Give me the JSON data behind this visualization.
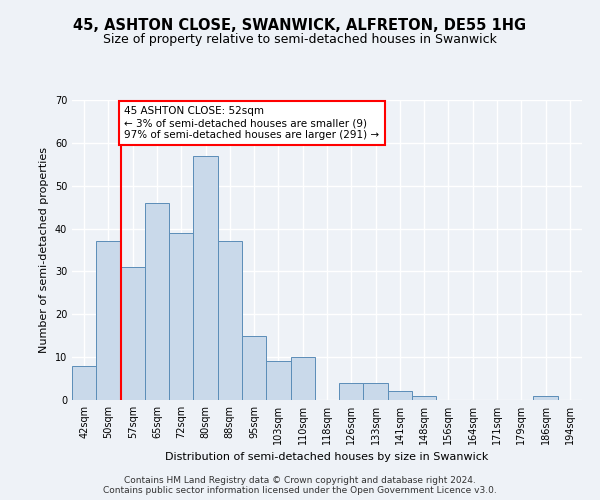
{
  "title": "45, ASHTON CLOSE, SWANWICK, ALFRETON, DE55 1HG",
  "subtitle": "Size of property relative to semi-detached houses in Swanwick",
  "xlabel": "Distribution of semi-detached houses by size in Swanwick",
  "ylabel": "Number of semi-detached properties",
  "categories": [
    "42sqm",
    "50sqm",
    "57sqm",
    "65sqm",
    "72sqm",
    "80sqm",
    "88sqm",
    "95sqm",
    "103sqm",
    "110sqm",
    "118sqm",
    "126sqm",
    "133sqm",
    "141sqm",
    "148sqm",
    "156sqm",
    "164sqm",
    "171sqm",
    "179sqm",
    "186sqm",
    "194sqm"
  ],
  "values": [
    8,
    37,
    31,
    46,
    39,
    57,
    37,
    15,
    9,
    10,
    0,
    4,
    4,
    2,
    1,
    0,
    0,
    0,
    0,
    1,
    0
  ],
  "bar_color": "#c9d9ea",
  "bar_edge_color": "#5b8db8",
  "bar_width": 1.0,
  "ylim": [
    0,
    70
  ],
  "yticks": [
    0,
    10,
    20,
    30,
    40,
    50,
    60,
    70
  ],
  "redline_x": 1.5,
  "annotation_text": "45 ASHTON CLOSE: 52sqm\n← 3% of semi-detached houses are smaller (9)\n97% of semi-detached houses are larger (291) →",
  "footer_line1": "Contains HM Land Registry data © Crown copyright and database right 2024.",
  "footer_line2": "Contains public sector information licensed under the Open Government Licence v3.0.",
  "background_color": "#eef2f7",
  "plot_bg_color": "#eef2f7",
  "grid_color": "#ffffff",
  "title_fontsize": 10.5,
  "subtitle_fontsize": 9,
  "axis_label_fontsize": 8,
  "tick_fontsize": 7,
  "footer_fontsize": 6.5,
  "annotation_fontsize": 7.5
}
